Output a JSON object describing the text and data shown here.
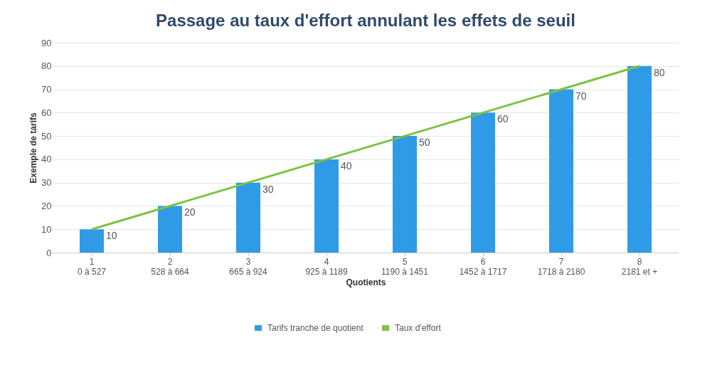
{
  "chart_data": {
    "type": "bar",
    "title": "Passage au taux d'effort annulant les effets de seuil",
    "xlabel": "Quotients",
    "ylabel": "Exemple de tarifs",
    "categories": [
      "1\n0 à 527",
      "2\n528 à 664",
      "3\n665 à 924",
      "4\n925 à 1189",
      "5\n1190 à 1451",
      "6\n1452 à 1717",
      "7\n1718 à 2180",
      "8\n2181 et +"
    ],
    "series": [
      {
        "name": "Tarifs tranche de quotient",
        "color": "#2f9be6",
        "values": [
          10,
          20,
          30,
          40,
          50,
          60,
          70,
          80
        ],
        "value_labels": [
          "10",
          "20",
          "30",
          "40",
          "50",
          "60",
          "70",
          "80"
        ]
      },
      {
        "name": "Taux d'effort",
        "type": "line",
        "color": "#7dc243",
        "values": [
          10,
          20,
          30,
          40,
          50,
          60,
          70,
          80
        ]
      }
    ],
    "ylim": [
      0,
      90
    ],
    "yticks": [
      0,
      10,
      20,
      30,
      40,
      50,
      60,
      70,
      80,
      90
    ],
    "grid": "y",
    "legend": "bottom"
  }
}
